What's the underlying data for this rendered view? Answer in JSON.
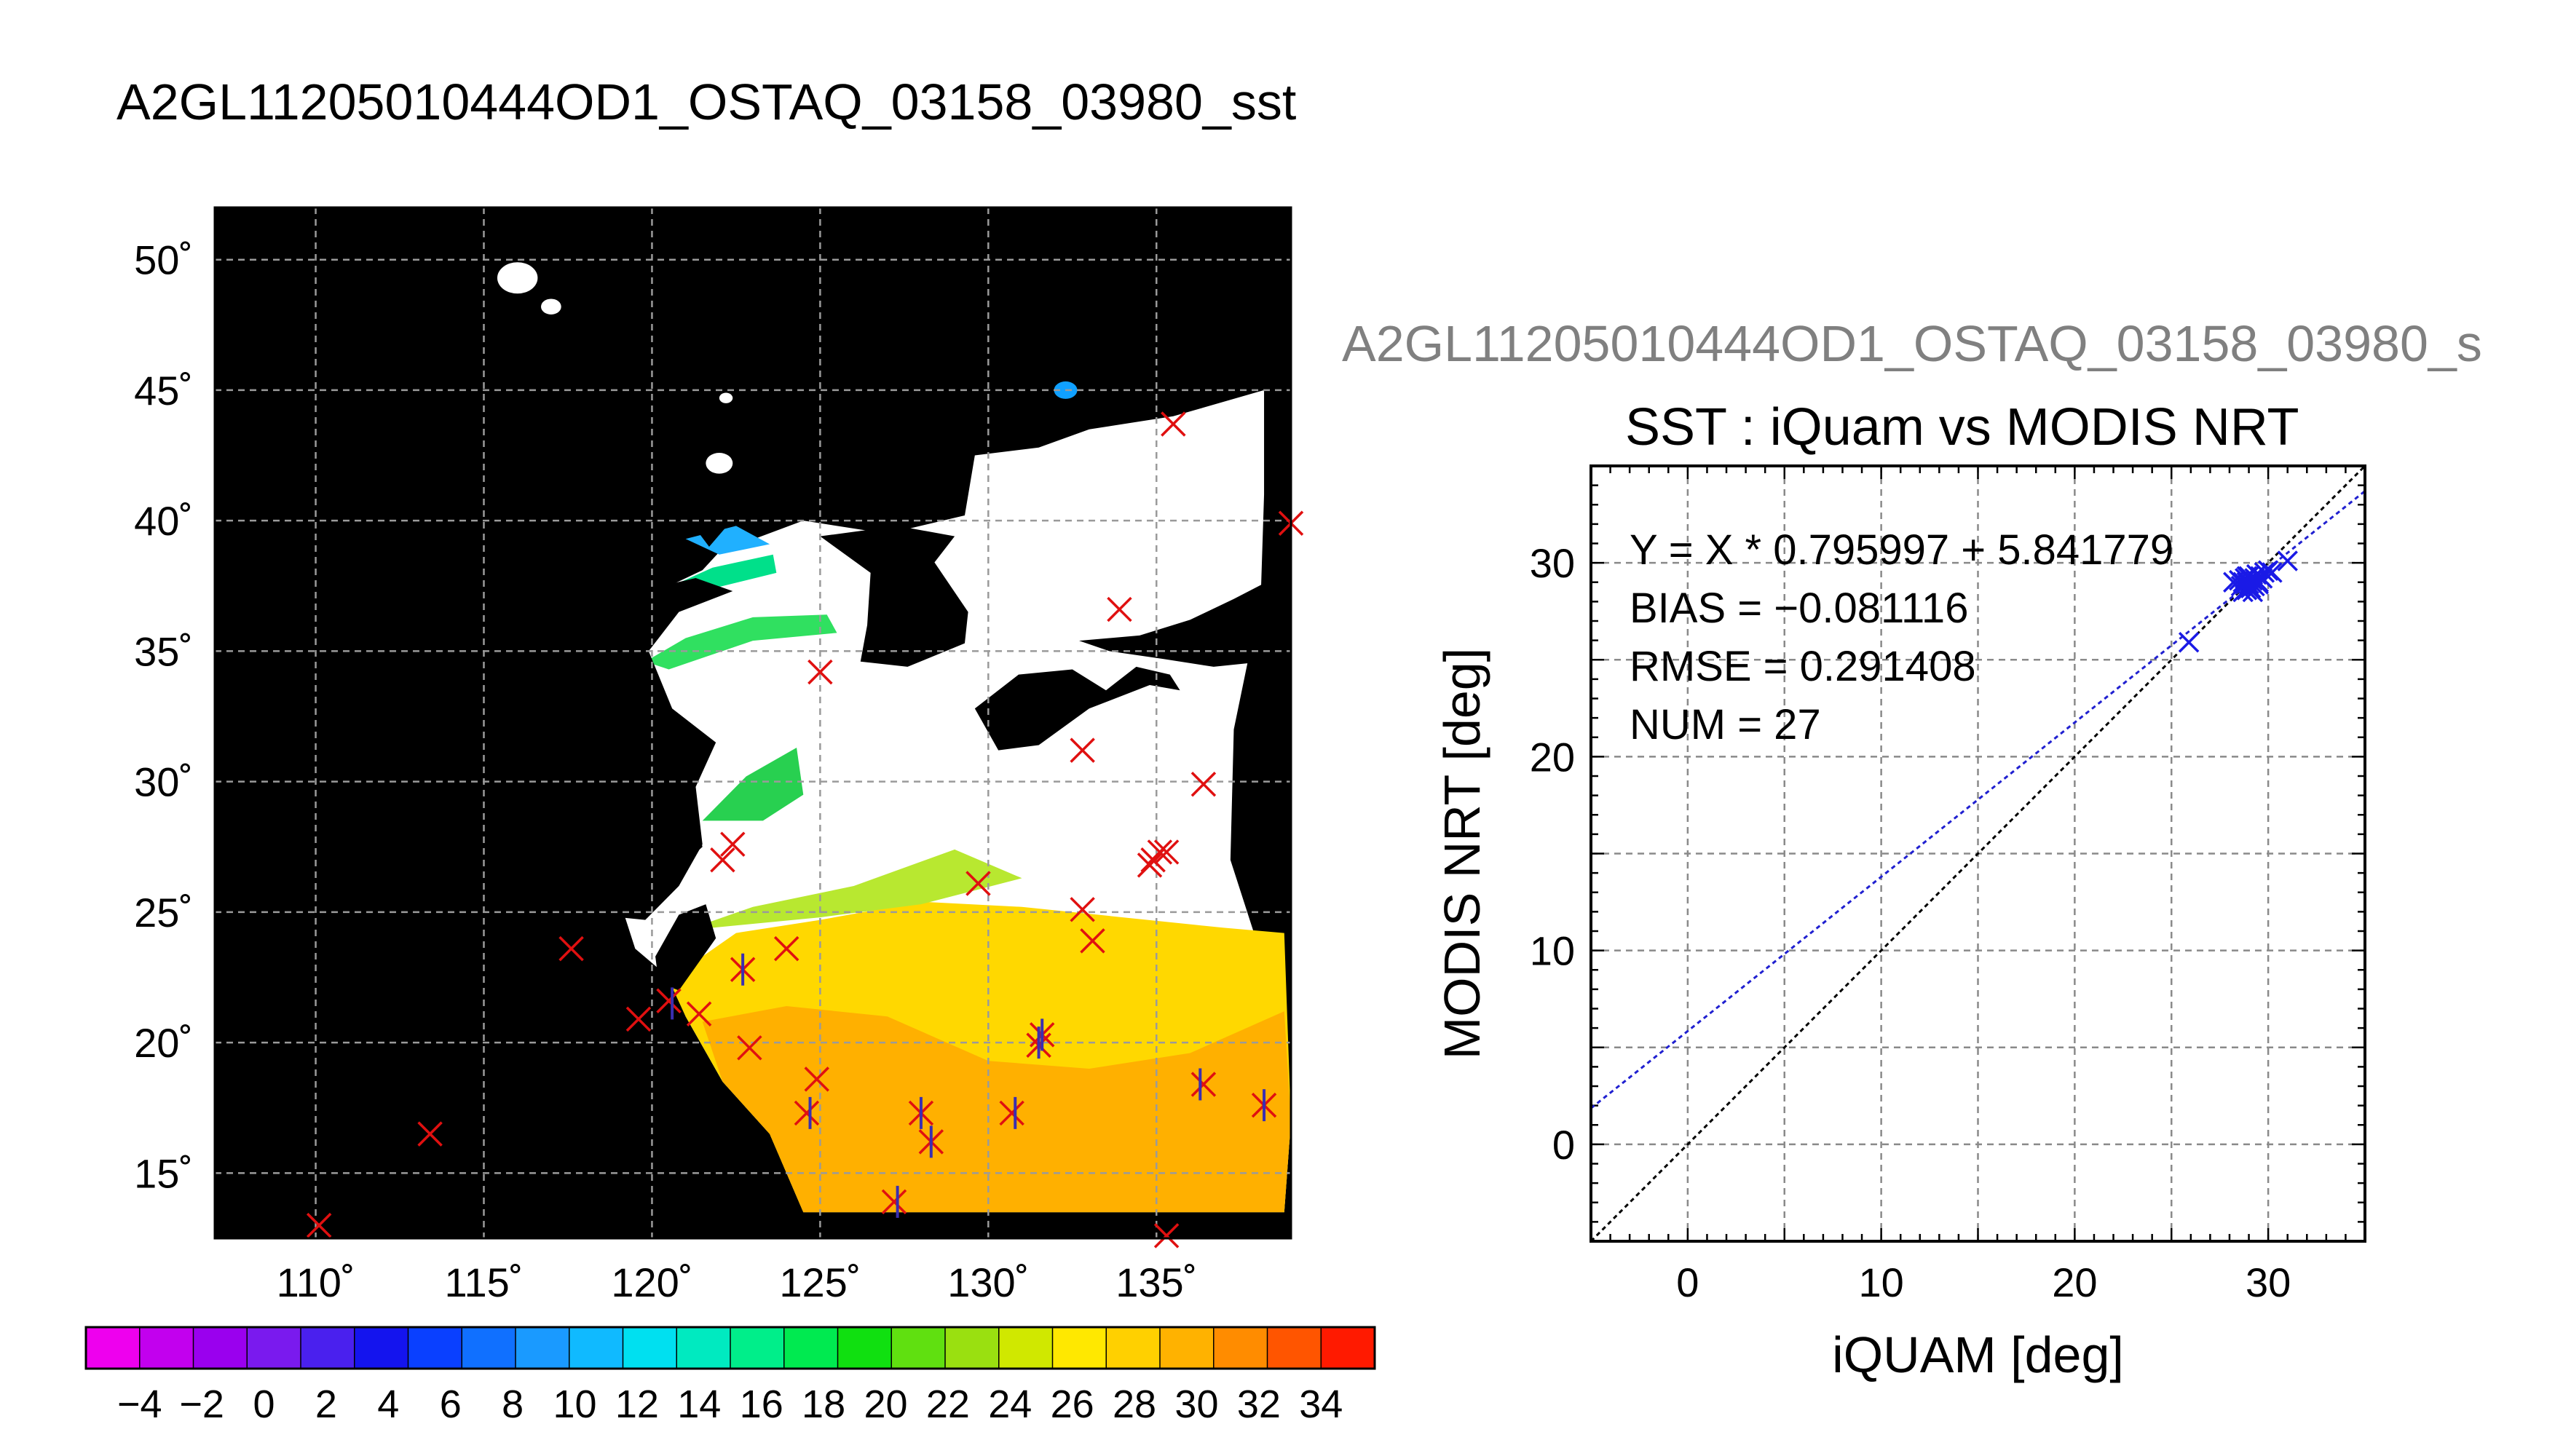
{
  "main_title": "A2GL11205010444OD1_OSTAQ_03158_03980_sst",
  "second_title": "A2GL11205010444OD1_OSTAQ_03158_03980_s",
  "map": {
    "lon_range": [
      107,
      139
    ],
    "lat_range": [
      12.5,
      52
    ],
    "lon_ticks": [
      110,
      115,
      120,
      125,
      130,
      135
    ],
    "lat_ticks": [
      15,
      20,
      25,
      30,
      35,
      40,
      45,
      50
    ],
    "lon_labels": [
      "110˚",
      "115˚",
      "120˚",
      "125˚",
      "130˚",
      "135˚"
    ],
    "lat_labels": [
      "15˚",
      "20˚",
      "25˚",
      "30˚",
      "35˚",
      "40˚",
      "45˚",
      "50˚"
    ],
    "colors": {
      "background": "#000000",
      "cloud": "#ffffff",
      "grid": "#9a9a9a",
      "x_marker": "#e01010",
      "star_marker": "#3a2fb0"
    },
    "x_markers": [
      [
        110.1,
        13.0
      ],
      [
        113.4,
        16.5
      ],
      [
        117.6,
        23.6
      ],
      [
        119.6,
        20.9
      ],
      [
        120.5,
        21.6
      ],
      [
        121.4,
        21.1
      ],
      [
        122.1,
        27.0
      ],
      [
        122.4,
        27.6
      ],
      [
        122.7,
        22.8
      ],
      [
        122.9,
        19.8
      ],
      [
        124.0,
        23.6
      ],
      [
        125.0,
        34.2
      ],
      [
        124.9,
        18.6
      ],
      [
        124.6,
        17.3
      ],
      [
        127.2,
        13.9
      ],
      [
        128.0,
        17.3
      ],
      [
        128.3,
        16.2
      ],
      [
        129.7,
        26.1
      ],
      [
        130.7,
        17.3
      ],
      [
        131.6,
        20.3
      ],
      [
        131.5,
        19.9
      ],
      [
        132.8,
        31.2
      ],
      [
        132.8,
        25.1
      ],
      [
        133.1,
        23.9
      ],
      [
        133.9,
        36.6
      ],
      [
        134.8,
        26.8
      ],
      [
        134.9,
        27.0
      ],
      [
        135.1,
        27.3
      ],
      [
        135.3,
        27.3
      ],
      [
        135.5,
        43.7
      ],
      [
        135.3,
        12.6
      ],
      [
        136.4,
        18.4
      ],
      [
        136.4,
        29.9
      ],
      [
        138.2,
        17.6
      ],
      [
        139.0,
        39.9
      ]
    ],
    "star_markers": [
      [
        120.6,
        21.5
      ],
      [
        122.7,
        22.8
      ],
      [
        124.7,
        17.3
      ],
      [
        127.3,
        13.9
      ],
      [
        128.0,
        17.3
      ],
      [
        128.3,
        16.2
      ],
      [
        130.8,
        17.3
      ],
      [
        131.6,
        20.3
      ],
      [
        131.5,
        20.0
      ],
      [
        136.3,
        18.4
      ],
      [
        138.2,
        17.6
      ]
    ]
  },
  "colorbar": {
    "labels": [
      "−4",
      "−2",
      "0",
      "2",
      "4",
      "6",
      "8",
      "10",
      "12",
      "14",
      "16",
      "18",
      "20",
      "22",
      "24",
      "26",
      "28",
      "30",
      "32",
      "34"
    ],
    "colors": [
      "#ee00ee",
      "#c200ee",
      "#9a00ee",
      "#7a1aee",
      "#4a20ee",
      "#1414ee",
      "#0a40ff",
      "#1070ff",
      "#1a9aff",
      "#10baff",
      "#00e0f0",
      "#00eac0",
      "#00ee8a",
      "#00ea50",
      "#10e010",
      "#60e010",
      "#9ae010",
      "#d0e800",
      "#ffe800",
      "#ffd000",
      "#ffb200",
      "#ff8c00",
      "#ff5500",
      "#ff1a00"
    ]
  },
  "chart_data": {
    "type": "scatter",
    "title": "SST : iQuam vs MODIS NRT",
    "xlabel": "iQUAM [deg]",
    "ylabel": "MODIS NRT [deg]",
    "xlim": [
      -5,
      35
    ],
    "ylim": [
      -5,
      35
    ],
    "xticks": [
      0,
      10,
      20,
      30
    ],
    "yticks": [
      0,
      10,
      20,
      30
    ],
    "grid": true,
    "stats": {
      "equation": "Y = X * 0.795997 + 5.841779",
      "bias": "BIAS = −0.081116",
      "rmse": "RMSE = 0.291408",
      "num": "NUM = 27"
    },
    "series": [
      {
        "values": [
          [
            25.9,
            25.9
          ],
          [
            28.2,
            29.0
          ],
          [
            28.5,
            29.1
          ],
          [
            28.6,
            28.8
          ],
          [
            28.7,
            28.5
          ],
          [
            28.8,
            29.2
          ],
          [
            28.9,
            29.0
          ],
          [
            28.9,
            28.6
          ],
          [
            29.0,
            29.3
          ],
          [
            29.0,
            28.9
          ],
          [
            29.1,
            28.7
          ],
          [
            29.2,
            29.1
          ],
          [
            29.3,
            29.2
          ],
          [
            29.3,
            28.8
          ],
          [
            29.4,
            29.4
          ],
          [
            29.5,
            29.0
          ],
          [
            29.6,
            29.3
          ],
          [
            29.7,
            29.2
          ],
          [
            29.5,
            28.9
          ],
          [
            28.7,
            29.0
          ],
          [
            28.9,
            29.3
          ],
          [
            29.2,
            28.5
          ],
          [
            29.8,
            29.5
          ],
          [
            30.0,
            29.6
          ],
          [
            30.2,
            29.5
          ],
          [
            29.4,
            29.1
          ],
          [
            31.0,
            30.1
          ]
        ]
      }
    ],
    "fit_line": {
      "slope": 0.795997,
      "intercept": 5.841779,
      "color": "#2020d0"
    },
    "identity_line": {
      "color": "#000000"
    },
    "point_color": "#1a1ae6"
  }
}
